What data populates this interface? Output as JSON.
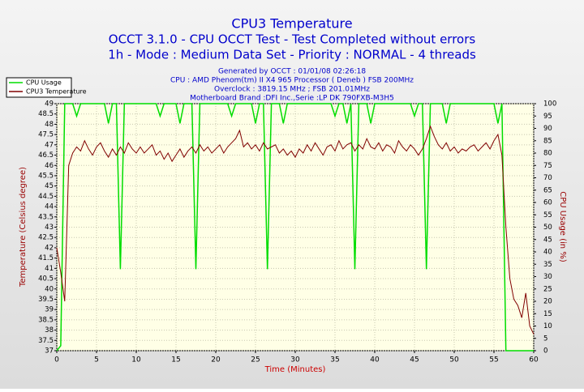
{
  "chart_data": {
    "type": "line",
    "title": "CPU3 Temperature",
    "subtitles": [
      "OCCT 3.1.0 - CPU OCCT Test - Test Completed without errors",
      "1h - Mode : Medium Data Set - Priority : NORMAL - 4 threads"
    ],
    "info_lines": [
      "Generated by OCCT : 01/01/08 02:26:18",
      "CPU : AMD Phenom(tm) II X4 965 Processor ( Deneb ) FSB 200MHz",
      "Overclock : 3819.15 MHz ; FSB 201.01MHz",
      "Motherboard Brand :DFI Inc.,Serie :LP DK 790FXB-M3H5"
    ],
    "x_label": "Time (Minutes)",
    "y_label": "Temperature (Celsius degree)",
    "y2_label": "CPU Usage (in %)",
    "legend": "top-left",
    "grid": true,
    "xlim": [
      0,
      60
    ],
    "xticks": [
      0,
      5,
      10,
      15,
      20,
      25,
      30,
      35,
      40,
      45,
      50,
      55,
      60
    ],
    "ylim": [
      37,
      49
    ],
    "yticks": [
      37,
      37.5,
      38,
      38.5,
      39,
      39.5,
      40,
      40.5,
      41,
      41.5,
      42,
      42.5,
      43,
      43.5,
      44,
      44.5,
      45,
      45.5,
      46,
      46.5,
      47,
      47.5,
      48,
      48.5,
      49
    ],
    "y2lim": [
      0,
      100
    ],
    "y2ticks": [
      0,
      5,
      10,
      15,
      20,
      25,
      30,
      35,
      40,
      45,
      50,
      55,
      60,
      65,
      70,
      75,
      80,
      85,
      90,
      95,
      100
    ],
    "x": [
      0,
      0.5,
      1,
      1.5,
      2,
      2.5,
      3,
      3.5,
      4,
      4.5,
      5,
      5.5,
      6,
      6.5,
      7,
      7.5,
      8,
      8.5,
      9,
      9.5,
      10,
      10.5,
      11,
      11.5,
      12,
      12.5,
      13,
      13.5,
      14,
      14.5,
      15,
      15.5,
      16,
      16.5,
      17,
      17.5,
      18,
      18.5,
      19,
      19.5,
      20,
      20.5,
      21,
      21.5,
      22,
      22.5,
      23,
      23.5,
      24,
      24.5,
      25,
      25.5,
      26,
      26.5,
      27,
      27.5,
      28,
      28.5,
      29,
      29.5,
      30,
      30.5,
      31,
      31.5,
      32,
      32.5,
      33,
      33.5,
      34,
      34.5,
      35,
      35.5,
      36,
      36.5,
      37,
      37.5,
      38,
      38.5,
      39,
      39.5,
      40,
      40.5,
      41,
      41.5,
      42,
      42.5,
      43,
      43.5,
      44,
      44.5,
      45,
      45.5,
      46,
      46.5,
      47,
      47.5,
      48,
      48.5,
      49,
      49.5,
      50,
      50.5,
      51,
      51.5,
      52,
      52.5,
      53,
      53.5,
      54,
      54.5,
      55,
      55.5,
      56,
      56.5,
      57,
      57.5,
      58,
      58.5,
      59,
      59.5,
      60
    ],
    "series": [
      {
        "name": "CPU Usage",
        "color": "#00dd00",
        "axis": "y2",
        "values": [
          0,
          2,
          100,
          100,
          100,
          95,
          100,
          100,
          100,
          100,
          100,
          100,
          100,
          92,
          100,
          100,
          33,
          100,
          100,
          100,
          100,
          100,
          100,
          100,
          100,
          100,
          95,
          100,
          100,
          100,
          100,
          92,
          100,
          100,
          100,
          33,
          100,
          100,
          100,
          100,
          100,
          100,
          100,
          100,
          95,
          100,
          100,
          100,
          100,
          100,
          92,
          100,
          100,
          33,
          100,
          100,
          100,
          92,
          100,
          100,
          100,
          100,
          100,
          100,
          100,
          100,
          100,
          100,
          100,
          100,
          95,
          100,
          100,
          92,
          100,
          33,
          100,
          100,
          100,
          92,
          100,
          100,
          100,
          100,
          100,
          100,
          100,
          100,
          100,
          100,
          95,
          100,
          100,
          33,
          100,
          100,
          100,
          100,
          92,
          100,
          100,
          100,
          100,
          100,
          100,
          100,
          100,
          100,
          100,
          100,
          100,
          92,
          100,
          0,
          0,
          0,
          0,
          0,
          0,
          0,
          0
        ]
      },
      {
        "name": "CPU3 Temperature",
        "color": "#800000",
        "values": [
          42,
          40.8,
          39.4,
          46,
          46.6,
          46.9,
          46.7,
          47.2,
          46.8,
          46.5,
          46.9,
          47.1,
          46.7,
          46.4,
          46.8,
          46.5,
          46.9,
          46.6,
          47.1,
          46.8,
          46.6,
          46.9,
          46.6,
          46.8,
          47.0,
          46.5,
          46.7,
          46.3,
          46.6,
          46.2,
          46.5,
          46.8,
          46.4,
          46.7,
          46.9,
          46.6,
          47.0,
          46.7,
          46.9,
          46.6,
          46.8,
          47.0,
          46.6,
          46.9,
          47.1,
          47.3,
          47.7,
          46.9,
          47.1,
          46.8,
          47.0,
          46.7,
          47.1,
          46.8,
          46.9,
          47.0,
          46.6,
          46.8,
          46.5,
          46.7,
          46.4,
          46.8,
          46.6,
          47.0,
          46.7,
          47.1,
          46.8,
          46.5,
          46.9,
          47.0,
          46.7,
          47.2,
          46.8,
          47.0,
          47.1,
          46.7,
          47.0,
          46.8,
          47.3,
          46.9,
          46.8,
          47.1,
          46.7,
          47.0,
          46.9,
          46.6,
          47.2,
          46.9,
          46.7,
          47.0,
          46.8,
          46.5,
          46.8,
          47.3,
          47.9,
          47.4,
          47.0,
          46.8,
          47.1,
          46.7,
          46.9,
          46.6,
          46.8,
          46.7,
          46.9,
          47.0,
          46.7,
          46.9,
          47.1,
          46.8,
          47.2,
          47.5,
          46.5,
          43,
          40.5,
          39.5,
          39.2,
          38.6,
          39.8,
          38.2,
          37.8
        ]
      }
    ]
  }
}
